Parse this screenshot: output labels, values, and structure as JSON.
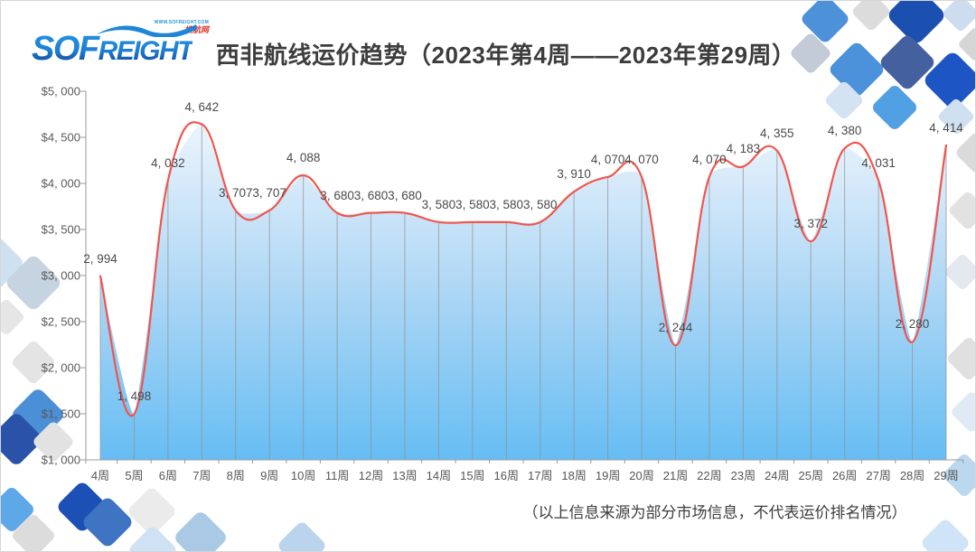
{
  "logo": {
    "brand_main": "SOF",
    "brand_rest": "REIGHT",
    "website": "WWW.SOFREIGHT.COM",
    "tagline": "搜航网"
  },
  "header": {
    "title": "西非航线运价趋势（2023年第4周——2023年第29周）"
  },
  "footer": {
    "note": "（以上信息来源为部分市场信息，不代表运价排名情况）"
  },
  "chart_data": {
    "type": "area",
    "title": "西非航线运价趋势（2023年第4周——2023年第29周）",
    "xlabel": "",
    "ylabel": "",
    "ylim": [
      1000,
      5000
    ],
    "grid": "vertical-drop-lines",
    "legend_position": "none",
    "categories": [
      "4周",
      "5周",
      "6周",
      "7周",
      "8周",
      "9周",
      "10周",
      "11周",
      "12周",
      "13周",
      "14周",
      "15周",
      "16周",
      "17周",
      "18周",
      "19周",
      "20周",
      "21周",
      "22周",
      "23周",
      "24周",
      "25周",
      "26周",
      "27周",
      "28周",
      "29周"
    ],
    "series": [
      {
        "name": "西非航线运价",
        "values": [
          2994,
          1498,
          4032,
          4642,
          3707,
          3707,
          4088,
          3680,
          3680,
          3680,
          3580,
          3580,
          3580,
          3580,
          3910,
          4070,
          4070,
          2244,
          4070,
          4183,
          4355,
          3372,
          4380,
          4031,
          2280,
          4414
        ],
        "labels": [
          "2, 994",
          "1, 498",
          "4, 032",
          "4, 642",
          "3, 707",
          "3, 707",
          "4, 088",
          "3, 680",
          "3, 680",
          "3, 680",
          "3, 580",
          "3, 580",
          "3, 580",
          "3, 580",
          "3, 910",
          "4, 070",
          "4, 070",
          "2, 244",
          "4, 070",
          "4, 183",
          "4, 355",
          "3, 372",
          "4, 380",
          "4, 031",
          "2, 280",
          "4, 414"
        ]
      }
    ],
    "y_ticks": {
      "values": [
        5000,
        4500,
        4000,
        3500,
        3000,
        2500,
        2000,
        1500,
        1000
      ],
      "labels": [
        "$5, 000",
        "$4, 500",
        "$4, 000",
        "$3, 500",
        "$3, 000",
        "$2, 500",
        "$2, 000",
        "$1, 500",
        "$1, 000"
      ]
    },
    "colors": {
      "line": "#f0564e",
      "area_top": "#eef5fd",
      "area_mid": "#aed7f5",
      "area_bottom": "#66bdf3",
      "axis": "#9a9a9a",
      "label_text": "#4a4a4a"
    }
  }
}
